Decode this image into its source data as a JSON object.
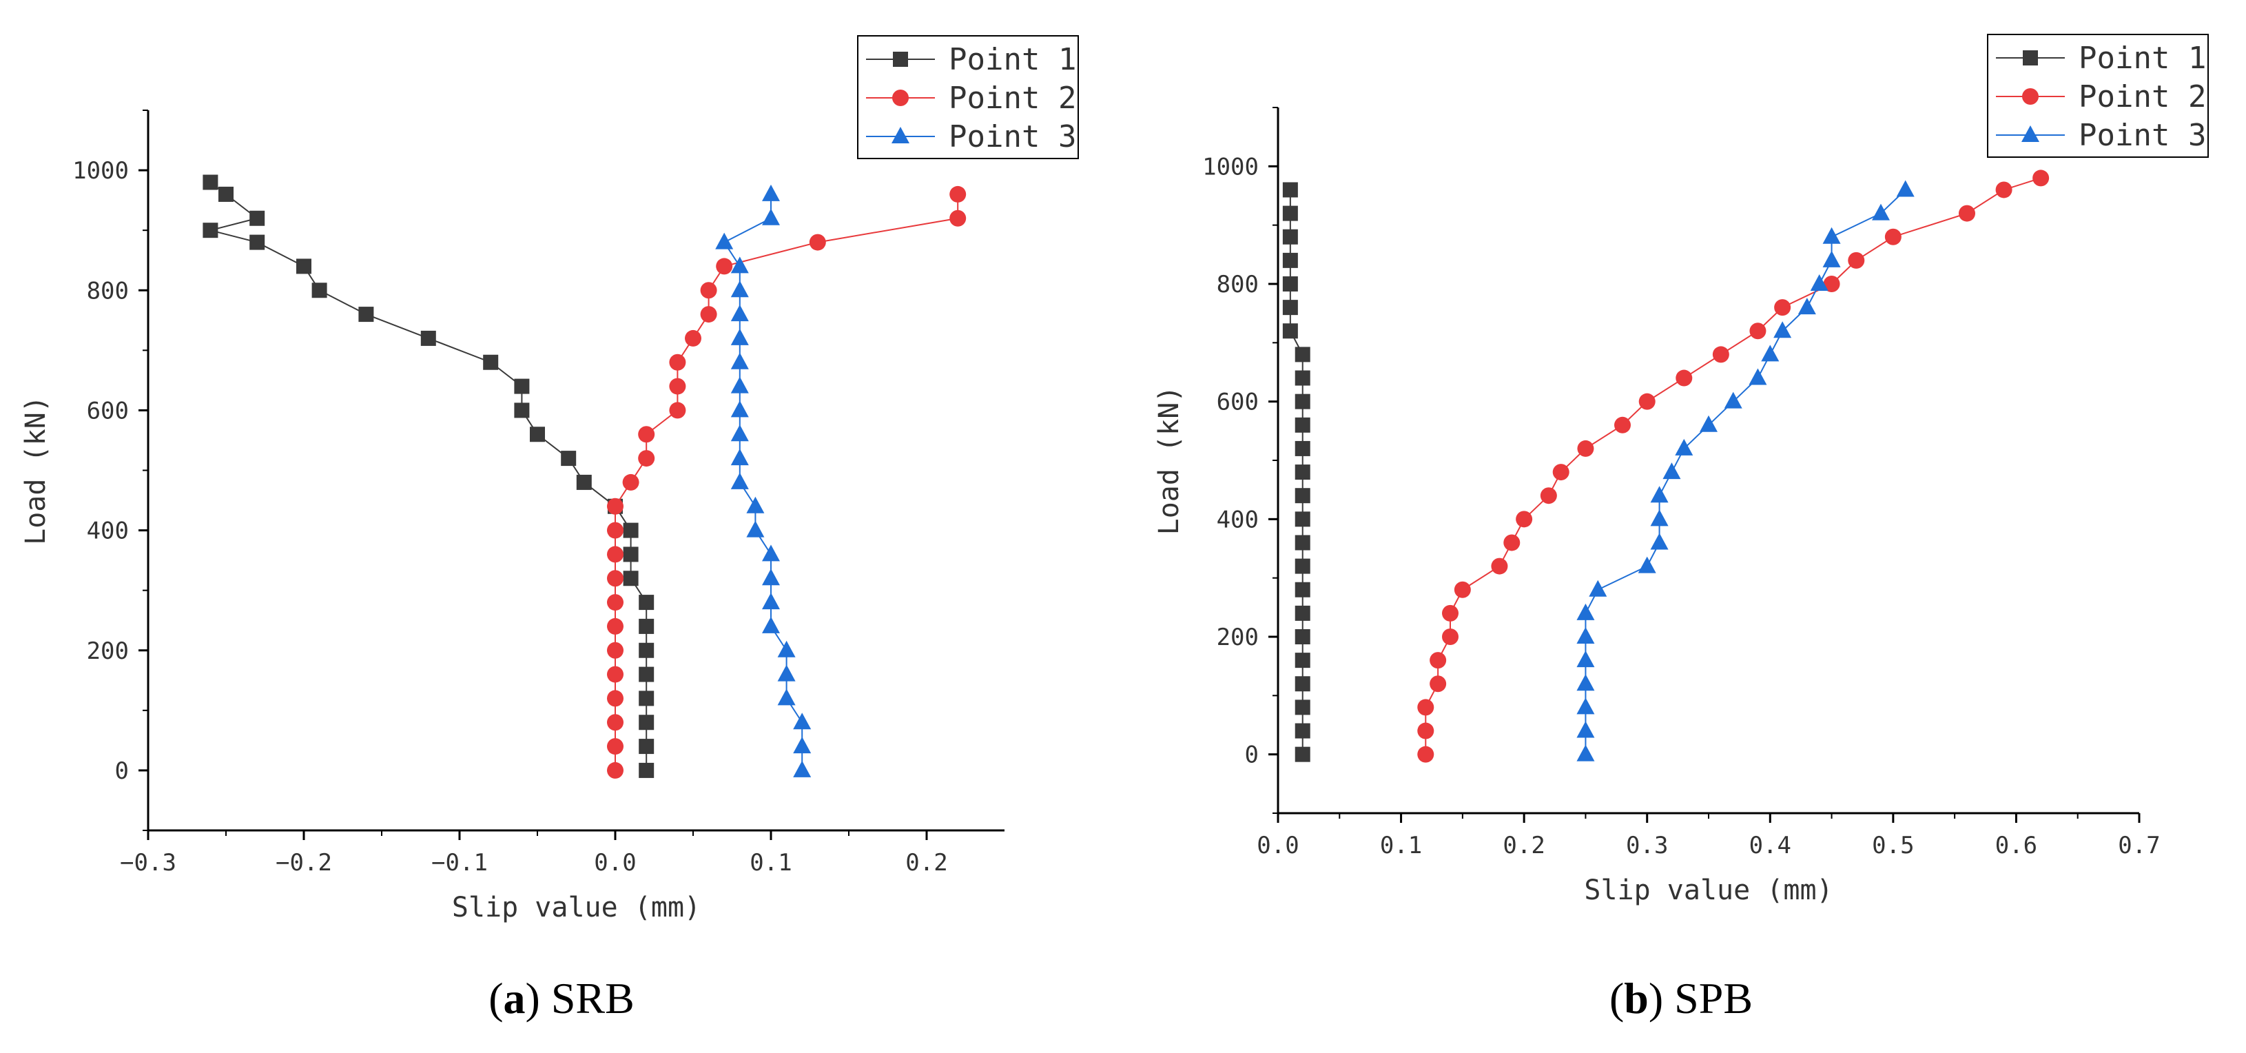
{
  "chart_data": [
    {
      "type": "line",
      "panel": "a",
      "caption_letter": "a",
      "caption_name": "SRB",
      "xlabel": "Slip value (mm)",
      "ylabel": "Load (kN)",
      "xlim": [
        -0.3,
        0.25
      ],
      "ylim": [
        -100,
        1100
      ],
      "xticks": [
        -0.3,
        -0.2,
        -0.1,
        0.0,
        0.1,
        0.2
      ],
      "xtick_labels": [
        "−0.3",
        "−0.2",
        "−0.1",
        "0.0",
        "0.1",
        "0.2"
      ],
      "yticks": [
        0,
        200,
        400,
        600,
        800,
        1000
      ],
      "ytick_labels": [
        "0",
        "200",
        "400",
        "600",
        "800",
        "1000"
      ],
      "legend_position": "top-right",
      "series": [
        {
          "name": "Point 1",
          "color": "#3a3a3a",
          "marker": "square",
          "points": [
            [
              0.02,
              0
            ],
            [
              0.02,
              40
            ],
            [
              0.02,
              80
            ],
            [
              0.02,
              120
            ],
            [
              0.02,
              160
            ],
            [
              0.02,
              200
            ],
            [
              0.02,
              240
            ],
            [
              0.02,
              280
            ],
            [
              0.01,
              320
            ],
            [
              0.01,
              360
            ],
            [
              0.01,
              400
            ],
            [
              0,
              440
            ],
            [
              -0.02,
              480
            ],
            [
              -0.03,
              520
            ],
            [
              -0.05,
              560
            ],
            [
              -0.06,
              600
            ],
            [
              -0.06,
              640
            ],
            [
              -0.08,
              680
            ],
            [
              -0.12,
              720
            ],
            [
              -0.16,
              760
            ],
            [
              -0.19,
              800
            ],
            [
              -0.2,
              840
            ],
            [
              -0.23,
              880
            ],
            [
              -0.26,
              900
            ],
            [
              -0.23,
              920
            ],
            [
              -0.25,
              960
            ],
            [
              -0.26,
              980
            ]
          ]
        },
        {
          "name": "Point 2",
          "color": "#e8393b",
          "marker": "circle",
          "points": [
            [
              0,
              0
            ],
            [
              0,
              40
            ],
            [
              0,
              80
            ],
            [
              0,
              120
            ],
            [
              0,
              160
            ],
            [
              0,
              200
            ],
            [
              0,
              240
            ],
            [
              0,
              280
            ],
            [
              0,
              320
            ],
            [
              0,
              360
            ],
            [
              0,
              400
            ],
            [
              0,
              440
            ],
            [
              0.01,
              480
            ],
            [
              0.02,
              520
            ],
            [
              0.02,
              560
            ],
            [
              0.04,
              600
            ],
            [
              0.04,
              640
            ],
            [
              0.04,
              680
            ],
            [
              0.05,
              720
            ],
            [
              0.06,
              760
            ],
            [
              0.06,
              800
            ],
            [
              0.07,
              840
            ],
            [
              0.13,
              880
            ],
            [
              0.22,
              920
            ],
            [
              0.22,
              960
            ]
          ]
        },
        {
          "name": "Point 3",
          "color": "#1f6fd6",
          "marker": "triangle",
          "points": [
            [
              0.12,
              0
            ],
            [
              0.12,
              40
            ],
            [
              0.12,
              80
            ],
            [
              0.11,
              120
            ],
            [
              0.11,
              160
            ],
            [
              0.11,
              200
            ],
            [
              0.1,
              240
            ],
            [
              0.1,
              280
            ],
            [
              0.1,
              320
            ],
            [
              0.1,
              360
            ],
            [
              0.09,
              400
            ],
            [
              0.09,
              440
            ],
            [
              0.08,
              480
            ],
            [
              0.08,
              520
            ],
            [
              0.08,
              560
            ],
            [
              0.08,
              600
            ],
            [
              0.08,
              640
            ],
            [
              0.08,
              680
            ],
            [
              0.08,
              720
            ],
            [
              0.08,
              760
            ],
            [
              0.08,
              800
            ],
            [
              0.08,
              840
            ],
            [
              0.07,
              880
            ],
            [
              0.1,
              920
            ],
            [
              0.1,
              960
            ]
          ]
        }
      ]
    },
    {
      "type": "line",
      "panel": "b",
      "caption_letter": "b",
      "caption_name": "SPB",
      "xlabel": "Slip value (mm)",
      "ylabel": "Load (kN)",
      "xlim": [
        0,
        0.7
      ],
      "ylim": [
        -100,
        1100
      ],
      "xticks": [
        0,
        0.1,
        0.2,
        0.3,
        0.4,
        0.5,
        0.6,
        0.7
      ],
      "xtick_labels": [
        "0.0",
        "0.1",
        "0.2",
        "0.3",
        "0.4",
        "0.5",
        "0.6",
        "0.7"
      ],
      "yticks": [
        0,
        200,
        400,
        600,
        800,
        1000
      ],
      "ytick_labels": [
        "0",
        "200",
        "400",
        "600",
        "800",
        "1000"
      ],
      "legend_position": "top-right",
      "series": [
        {
          "name": "Point 1",
          "color": "#3a3a3a",
          "marker": "square",
          "points": [
            [
              0.02,
              0
            ],
            [
              0.02,
              40
            ],
            [
              0.02,
              80
            ],
            [
              0.02,
              120
            ],
            [
              0.02,
              160
            ],
            [
              0.02,
              200
            ],
            [
              0.02,
              240
            ],
            [
              0.02,
              280
            ],
            [
              0.02,
              320
            ],
            [
              0.02,
              360
            ],
            [
              0.02,
              400
            ],
            [
              0.02,
              440
            ],
            [
              0.02,
              480
            ],
            [
              0.02,
              520
            ],
            [
              0.02,
              560
            ],
            [
              0.02,
              600
            ],
            [
              0.02,
              640
            ],
            [
              0.02,
              680
            ],
            [
              0.01,
              720
            ],
            [
              0.01,
              760
            ],
            [
              0.01,
              800
            ],
            [
              0.01,
              840
            ],
            [
              0.01,
              880
            ],
            [
              0.01,
              920
            ],
            [
              0.01,
              960
            ]
          ]
        },
        {
          "name": "Point 2",
          "color": "#e8393b",
          "marker": "circle",
          "points": [
            [
              0.12,
              0
            ],
            [
              0.12,
              40
            ],
            [
              0.12,
              80
            ],
            [
              0.13,
              120
            ],
            [
              0.13,
              160
            ],
            [
              0.14,
              200
            ],
            [
              0.14,
              240
            ],
            [
              0.15,
              280
            ],
            [
              0.18,
              320
            ],
            [
              0.19,
              360
            ],
            [
              0.2,
              400
            ],
            [
              0.22,
              440
            ],
            [
              0.23,
              480
            ],
            [
              0.25,
              520
            ],
            [
              0.28,
              560
            ],
            [
              0.3,
              600
            ],
            [
              0.33,
              640
            ],
            [
              0.36,
              680
            ],
            [
              0.39,
              720
            ],
            [
              0.41,
              760
            ],
            [
              0.45,
              800
            ],
            [
              0.47,
              840
            ],
            [
              0.5,
              880
            ],
            [
              0.56,
              920
            ],
            [
              0.59,
              960
            ],
            [
              0.62,
              980
            ]
          ]
        },
        {
          "name": "Point 3",
          "color": "#1f6fd6",
          "marker": "triangle",
          "points": [
            [
              0.25,
              0
            ],
            [
              0.25,
              40
            ],
            [
              0.25,
              80
            ],
            [
              0.25,
              120
            ],
            [
              0.25,
              160
            ],
            [
              0.25,
              200
            ],
            [
              0.25,
              240
            ],
            [
              0.26,
              280
            ],
            [
              0.3,
              320
            ],
            [
              0.31,
              360
            ],
            [
              0.31,
              400
            ],
            [
              0.31,
              440
            ],
            [
              0.32,
              480
            ],
            [
              0.33,
              520
            ],
            [
              0.35,
              560
            ],
            [
              0.37,
              600
            ],
            [
              0.39,
              640
            ],
            [
              0.4,
              680
            ],
            [
              0.41,
              720
            ],
            [
              0.43,
              760
            ],
            [
              0.44,
              800
            ],
            [
              0.45,
              840
            ],
            [
              0.45,
              880
            ],
            [
              0.49,
              920
            ],
            [
              0.51,
              960
            ]
          ]
        }
      ]
    }
  ]
}
